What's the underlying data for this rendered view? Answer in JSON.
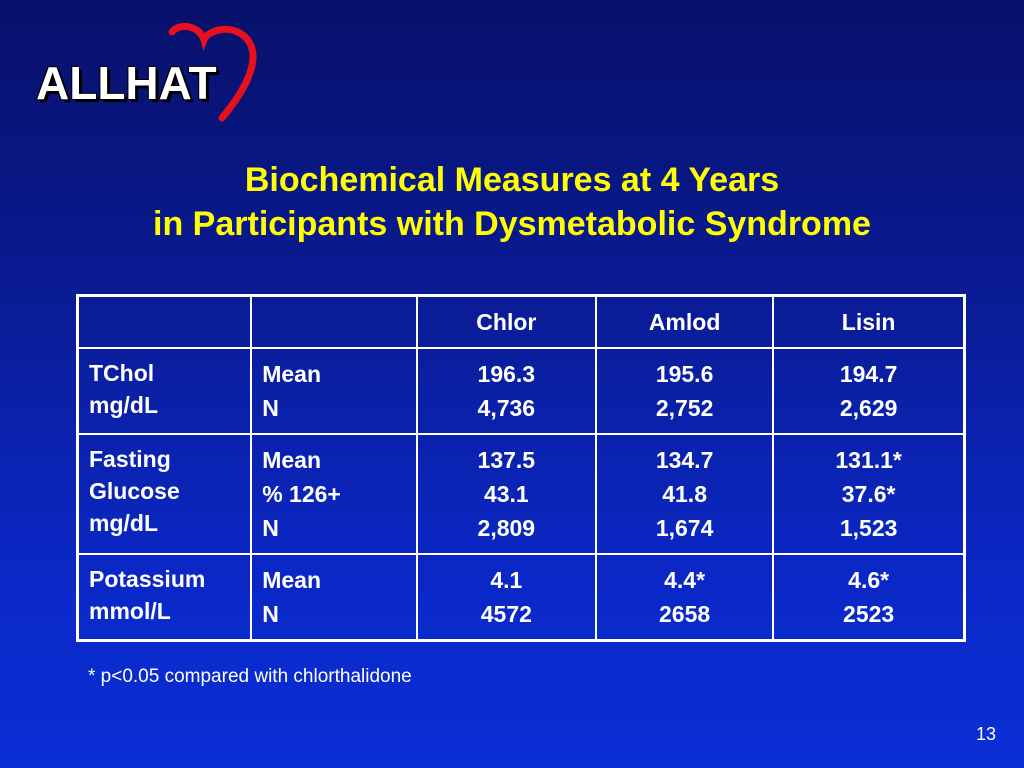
{
  "logo": {
    "text": "ALLHAT",
    "heart_color": "#e8101e"
  },
  "title": {
    "line1": "Biochemical Measures at 4 Years",
    "line2": "in Participants with Dysmetabolic Syndrome"
  },
  "table": {
    "headers": [
      "",
      "",
      "Chlor",
      "Amlod",
      "Lisin"
    ],
    "rows": [
      {
        "measure": [
          "TChol",
          "mg/dL"
        ],
        "stats": [
          "Mean",
          "N"
        ],
        "chlor": [
          "196.3",
          "4,736"
        ],
        "amlod": [
          "195.6",
          "2,752"
        ],
        "lisin": [
          "194.7",
          "2,629"
        ]
      },
      {
        "measure": [
          "Fasting",
          "Glucose",
          "mg/dL"
        ],
        "stats": [
          "Mean",
          "% 126+",
          "N"
        ],
        "chlor": [
          "137.5",
          "43.1",
          "2,809"
        ],
        "amlod": [
          "134.7",
          "41.8",
          "1,674"
        ],
        "lisin": [
          "131.1*",
          "37.6*",
          "1,523"
        ]
      },
      {
        "measure": [
          "Potassium",
          "mmol/L"
        ],
        "stats": [
          "Mean",
          "N"
        ],
        "chlor": [
          "4.1",
          "4572"
        ],
        "amlod": [
          "4.4*",
          "2658"
        ],
        "lisin": [
          "4.6*",
          "2523"
        ]
      }
    ]
  },
  "footnote": "* p<0.05 compared with chlorthalidone",
  "page_number": "13",
  "colors": {
    "title": "#ffff00",
    "text": "#ffffff",
    "background": "#0a1c96"
  }
}
